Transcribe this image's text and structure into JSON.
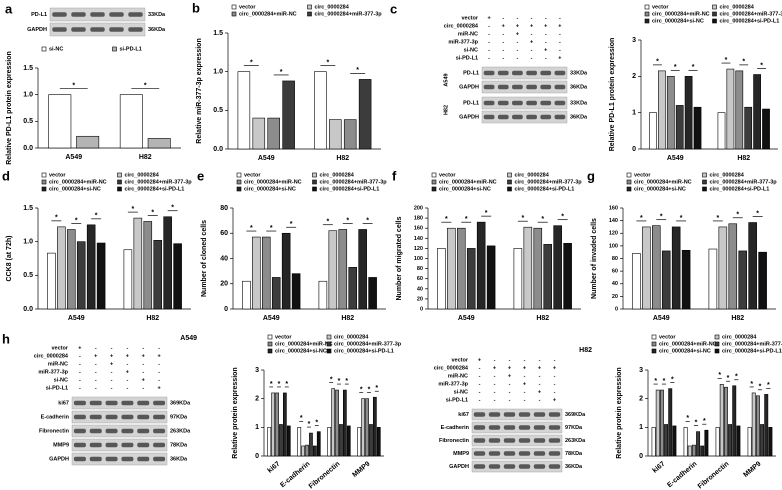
{
  "chart_data": [
    {
      "type": "bar",
      "ylabel": "Relative PD-L1 protein expression",
      "categories": [
        "A549",
        "H82"
      ],
      "series": [
        {
          "name": "si-NC",
          "color": "#ffffff",
          "values": [
            1.0,
            1.0
          ]
        },
        {
          "name": "si-PD-L1",
          "color": "#b4b4b4",
          "values": [
            0.22,
            0.18
          ]
        }
      ],
      "ylim": [
        0,
        1.5
      ],
      "yticks": [
        {
          "value": 0,
          "label": "0.0"
        },
        {
          "value": 0.5,
          "label": "0.5"
        },
        {
          "value": 1,
          "label": "1.0"
        },
        {
          "value": 1.5,
          "label": "1.5"
        }
      ],
      "significance": "*"
    },
    {
      "type": "bar",
      "panel": "b",
      "ylabel": "Relative miR-377-3p expression",
      "categories": [
        "A549",
        "H82"
      ],
      "series": [
        {
          "name": "vector",
          "color": "#ffffff",
          "values": [
            1.0,
            1.0
          ]
        },
        {
          "name": "circ_0000284",
          "color": "#c8c8c8",
          "values": [
            0.4,
            0.38
          ]
        },
        {
          "name": "circ_0000284+miR-NC",
          "color": "#8c8c8c",
          "values": [
            0.4,
            0.38
          ]
        },
        {
          "name": "circ_0000284+miR-377-3p",
          "color": "#3c3c3c",
          "values": [
            0.88,
            0.9
          ]
        }
      ],
      "ylim": [
        0,
        1.5
      ],
      "yticks": [
        {
          "value": 0,
          "label": "0.0"
        },
        {
          "value": 0.5,
          "label": "0.5"
        },
        {
          "value": 1,
          "label": "1.0"
        },
        {
          "value": 1.5,
          "label": "1.5"
        }
      ],
      "significance": "*"
    },
    {
      "type": "bar",
      "ylabel": "Relative PD-L1 protein expression",
      "categories": [
        "A549",
        "H82"
      ],
      "series": [
        {
          "name": "vector",
          "color": "#ffffff",
          "values": [
            1.0,
            1.0
          ]
        },
        {
          "name": "circ_0000284",
          "color": "#c8c8c8",
          "values": [
            2.15,
            2.2
          ]
        },
        {
          "name": "circ_0000284+miR-NC",
          "color": "#8c8c8c",
          "values": [
            2.0,
            2.15
          ]
        },
        {
          "name": "circ_0000284+miR-377-3p",
          "color": "#3c3c3c",
          "values": [
            1.2,
            1.15
          ]
        },
        {
          "name": "circ_0000284+si-NC",
          "color": "#262626",
          "values": [
            2.0,
            2.05
          ]
        },
        {
          "name": "circ_0000284+si-PD-L1",
          "color": "#111111",
          "values": [
            1.15,
            1.1
          ]
        }
      ],
      "ylim": [
        0,
        3
      ],
      "yticks": [
        0,
        1,
        2,
        3
      ],
      "significance": "*"
    },
    {
      "type": "bar",
      "panel": "d",
      "ylabel": "CCK8 (at 72h)",
      "categories": [
        "A549",
        "H82"
      ],
      "series": [
        {
          "name": "vector",
          "color": "#ffffff",
          "values": [
            0.83,
            0.88
          ]
        },
        {
          "name": "circ_0000284",
          "color": "#c8c8c8",
          "values": [
            1.22,
            1.35
          ]
        },
        {
          "name": "circ_0000284+miR-NC",
          "color": "#8c8c8c",
          "values": [
            1.18,
            1.3
          ]
        },
        {
          "name": "circ_0000284+miR-377-3p",
          "color": "#3c3c3c",
          "values": [
            1.0,
            1.02
          ]
        },
        {
          "name": "circ_0000284+si-NC",
          "color": "#262626",
          "values": [
            1.25,
            1.37
          ]
        },
        {
          "name": "circ_0000284+si-PD-L1",
          "color": "#111111",
          "values": [
            0.98,
            0.97
          ]
        }
      ],
      "ylim": [
        0,
        1.5
      ],
      "yticks": [
        {
          "value": 0,
          "label": "0.0"
        },
        {
          "value": 0.5,
          "label": "0.5"
        },
        {
          "value": 1,
          "label": "1.0"
        },
        {
          "value": 1.5,
          "label": "1.5"
        }
      ],
      "significance": "*"
    },
    {
      "type": "bar",
      "panel": "e",
      "ylabel": "Number of cloned cells",
      "categories": [
        "A549",
        "H82"
      ],
      "series": [
        {
          "name": "vector",
          "color": "#ffffff",
          "values": [
            22,
            22
          ]
        },
        {
          "name": "circ_0000284",
          "color": "#c8c8c8",
          "values": [
            57,
            62
          ]
        },
        {
          "name": "circ_0000284+miR-NC",
          "color": "#8c8c8c",
          "values": [
            57,
            63
          ]
        },
        {
          "name": "circ_0000284+miR-377-3p",
          "color": "#3c3c3c",
          "values": [
            25,
            33
          ]
        },
        {
          "name": "circ_0000284+si-NC",
          "color": "#262626",
          "values": [
            60,
            63
          ]
        },
        {
          "name": "circ_0000284+si-PD-L1",
          "color": "#111111",
          "values": [
            28,
            25
          ]
        }
      ],
      "ylim": [
        0,
        80
      ],
      "yticks": [
        0,
        20,
        40,
        60,
        80
      ],
      "significance": "*"
    },
    {
      "type": "bar",
      "panel": "f",
      "ylabel": "Number of migrated cells",
      "categories": [
        "A549",
        "H82"
      ],
      "series": [
        {
          "name": "vector",
          "color": "#ffffff",
          "values": [
            120,
            120
          ]
        },
        {
          "name": "circ_0000284",
          "color": "#c8c8c8",
          "values": [
            160,
            162
          ]
        },
        {
          "name": "circ_0000284+miR-NC",
          "color": "#8c8c8c",
          "values": [
            160,
            160
          ]
        },
        {
          "name": "circ_0000284+miR-377-3p",
          "color": "#3c3c3c",
          "values": [
            120,
            128
          ]
        },
        {
          "name": "circ_0000284+si-NC",
          "color": "#262626",
          "values": [
            172,
            165
          ]
        },
        {
          "name": "circ_0000284+si-PD-L1",
          "color": "#111111",
          "values": [
            125,
            130
          ]
        }
      ],
      "ylim": [
        0,
        200
      ],
      "yticks": [
        0,
        20,
        40,
        60,
        80,
        100,
        120,
        140,
        160,
        180,
        200
      ],
      "significance": "*"
    },
    {
      "type": "bar",
      "panel": "g",
      "ylabel": "Number of invaded cells",
      "categories": [
        "A549",
        "H82"
      ],
      "series": [
        {
          "name": "vector",
          "color": "#ffffff",
          "values": [
            88,
            95
          ]
        },
        {
          "name": "circ_0000284",
          "color": "#c8c8c8",
          "values": [
            130,
            130
          ]
        },
        {
          "name": "circ_0000284+miR-NC",
          "color": "#8c8c8c",
          "values": [
            132,
            135
          ]
        },
        {
          "name": "circ_0000284+miR-377-3p",
          "color": "#3c3c3c",
          "values": [
            92,
            92
          ]
        },
        {
          "name": "circ_0000284+si-NC",
          "color": "#262626",
          "values": [
            130,
            137
          ]
        },
        {
          "name": "circ_0000284+si-PD-L1",
          "color": "#111111",
          "values": [
            93,
            90
          ]
        }
      ],
      "ylim": [
        0,
        160
      ],
      "yticks": [
        0,
        20,
        40,
        60,
        80,
        100,
        120,
        140,
        160
      ],
      "significance": "*"
    },
    {
      "type": "bar",
      "ylabel": "Relative protein expression",
      "categories": [
        "ki67",
        "E-cadherin",
        "Fibronectin",
        "MMP9"
      ],
      "series": [
        {
          "name": "vector",
          "color": "#ffffff",
          "values": [
            1.0,
            1.0,
            1.0,
            1.0
          ]
        },
        {
          "name": "circ_0000284",
          "color": "#c8c8c8",
          "values": [
            2.2,
            0.35,
            2.35,
            2.0
          ]
        },
        {
          "name": "circ_0000284+miR-NC",
          "color": "#8c8c8c",
          "values": [
            2.2,
            0.38,
            2.3,
            2.0
          ]
        },
        {
          "name": "circ_0000284+miR-377-3p",
          "color": "#3c3c3c",
          "values": [
            1.1,
            0.8,
            1.1,
            1.1
          ]
        },
        {
          "name": "circ_0000284+si-NC",
          "color": "#262626",
          "values": [
            2.2,
            0.35,
            2.3,
            2.05
          ]
        },
        {
          "name": "circ_0000284+si-PD-L1",
          "color": "#111111",
          "values": [
            1.05,
            0.85,
            1.05,
            1.0
          ]
        }
      ],
      "ylim": [
        0,
        3
      ],
      "yticks": [
        0,
        1,
        2,
        3
      ],
      "significance": "*"
    },
    {
      "type": "bar",
      "ylabel": "Relative protein expression",
      "categories": [
        "ki67",
        "E-cadherin",
        "Fibronectin",
        "MMP9"
      ],
      "series": [
        {
          "name": "vector",
          "color": "#ffffff",
          "values": [
            1.0,
            1.0,
            1.0,
            1.0
          ]
        },
        {
          "name": "circ_0000284",
          "color": "#c8c8c8",
          "values": [
            2.3,
            0.35,
            2.5,
            2.2
          ]
        },
        {
          "name": "circ_0000284+miR-NC",
          "color": "#8c8c8c",
          "values": [
            2.3,
            0.38,
            2.4,
            2.1
          ]
        },
        {
          "name": "circ_0000284+miR-377-3p",
          "color": "#3c3c3c",
          "values": [
            1.1,
            0.85,
            1.1,
            1.1
          ]
        },
        {
          "name": "circ_0000284+si-NC",
          "color": "#262626",
          "values": [
            2.35,
            0.35,
            2.45,
            2.15
          ]
        },
        {
          "name": "circ_0000284+si-PD-L1",
          "color": "#111111",
          "values": [
            1.05,
            0.9,
            1.05,
            1.0
          ]
        }
      ],
      "ylim": [
        0,
        3
      ],
      "yticks": [
        0,
        1,
        2,
        3
      ],
      "significance": "*"
    }
  ],
  "blots": [
    {
      "panel": "a",
      "groups": [
        {
          "rows": [
            {
              "label": "PD-L1",
              "size": "33KDa"
            },
            {
              "label": "GAPDH",
              "size": "36KDa"
            }
          ]
        }
      ]
    },
    {
      "panel": "c",
      "treatments": [
        {
          "label": "vector",
          "signs": [
            "+",
            "-",
            "-",
            "-",
            "-",
            "-"
          ]
        },
        {
          "label": "circ_0000284",
          "signs": [
            "-",
            "+",
            "+",
            "+",
            "+",
            "+"
          ]
        },
        {
          "label": "miR-NC",
          "signs": [
            "-",
            "-",
            "+",
            "-",
            "-",
            "-"
          ]
        },
        {
          "label": "miR-377-3p",
          "signs": [
            "-",
            "-",
            "-",
            "+",
            "-",
            "-"
          ]
        },
        {
          "label": "si-NC",
          "signs": [
            "-",
            "-",
            "-",
            "-",
            "+",
            "-"
          ]
        },
        {
          "label": "si-PD-L1",
          "signs": [
            "-",
            "-",
            "-",
            "-",
            "-",
            "+"
          ]
        }
      ],
      "groups": [
        {
          "name": "A549",
          "rows": [
            {
              "label": "PD-L1",
              "size": "33KDa"
            },
            {
              "label": "GAPDH",
              "size": "36KDa"
            }
          ]
        },
        {
          "name": "H82",
          "rows": [
            {
              "label": "PD-L1",
              "size": "33KDa"
            },
            {
              "label": "GAPDH",
              "size": "36KDa"
            }
          ]
        }
      ]
    },
    {
      "panel": "h",
      "title": "A549",
      "treatments": [
        {
          "label": "vector",
          "signs": [
            "+",
            "-",
            "-",
            "-",
            "-",
            "-"
          ]
        },
        {
          "label": "circ_0000284",
          "signs": [
            "-",
            "+",
            "+",
            "+",
            "+",
            "+"
          ]
        },
        {
          "label": "miR-NC",
          "signs": [
            "-",
            "-",
            "+",
            "-",
            "-",
            "-"
          ]
        },
        {
          "label": "miR-377-3p",
          "signs": [
            "-",
            "-",
            "-",
            "+",
            "-",
            "-"
          ]
        },
        {
          "label": "si-NC",
          "signs": [
            "-",
            "-",
            "-",
            "-",
            "+",
            "-"
          ]
        },
        {
          "label": "si-PD-L1",
          "signs": [
            "-",
            "-",
            "-",
            "-",
            "-",
            "+"
          ]
        }
      ],
      "groups": [
        {
          "rows": [
            {
              "label": "ki67",
              "size": "369KDa"
            },
            {
              "label": "E-cadherin",
              "size": "97KDa"
            },
            {
              "label": "Fibronectin",
              "size": "263KDa"
            },
            {
              "label": "MMP9",
              "size": "78KDa"
            },
            {
              "label": "GAPDH",
              "size": "36KDa"
            }
          ]
        }
      ]
    },
    {
      "title": "H82",
      "treatments": [
        {
          "label": "vector",
          "signs": [
            "+",
            "-",
            "-",
            "-",
            "-",
            "-"
          ]
        },
        {
          "label": "circ_0000284",
          "signs": [
            "-",
            "+",
            "+",
            "+",
            "+",
            "+"
          ]
        },
        {
          "label": "miR-NC",
          "signs": [
            "-",
            "-",
            "+",
            "-",
            "-",
            "-"
          ]
        },
        {
          "label": "miR-377-3p",
          "signs": [
            "-",
            "-",
            "-",
            "+",
            "-",
            "-"
          ]
        },
        {
          "label": "si-NC",
          "signs": [
            "-",
            "-",
            "-",
            "-",
            "+",
            "-"
          ]
        },
        {
          "label": "si-PD-L1",
          "signs": [
            "-",
            "-",
            "-",
            "-",
            "-",
            "+"
          ]
        }
      ],
      "groups": [
        {
          "rows": [
            {
              "label": "ki67",
              "size": "369KDa"
            },
            {
              "label": "E-cadherin",
              "size": "97KDa"
            },
            {
              "label": "Fibronectin",
              "size": "263KDa"
            },
            {
              "label": "MMP9",
              "size": "78KDa"
            },
            {
              "label": "GAPDH",
              "size": "36KDa"
            }
          ]
        }
      ]
    }
  ]
}
